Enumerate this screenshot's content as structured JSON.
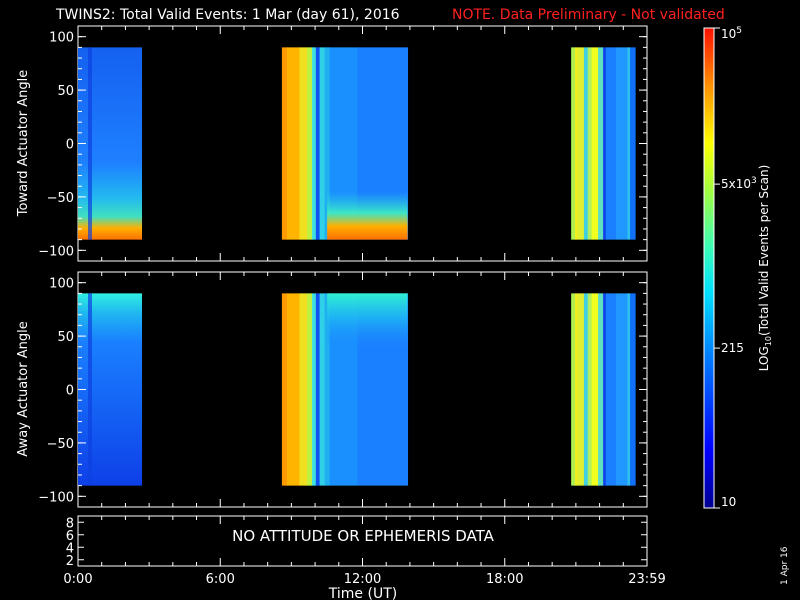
{
  "header": {
    "title": "TWINS2: Total Valid Events:  1 Mar (day  61), 2016",
    "note": "NOTE. Data Preliminary - Not validated"
  },
  "footer": {
    "date_stamp": "1 Apr 16"
  },
  "chart_data": [
    {
      "type": "heatmap",
      "panel": "toward",
      "ylabel": "Toward Actuator Angle",
      "ylim": [
        -110,
        110
      ],
      "yticks": [
        100,
        50,
        0,
        -50,
        -100
      ],
      "xlim_hours": [
        0,
        24
      ],
      "data_angle_range": [
        -90,
        90
      ],
      "segments": [
        {
          "start_hr": 0.0,
          "end_hr": 2.7,
          "base": "blue",
          "edge": "orange-bottom"
        },
        {
          "start_hr": 8.6,
          "end_hr": 13.9,
          "base": "orange-to-blue",
          "edge": "orange-bottom"
        },
        {
          "start_hr": 20.8,
          "end_hr": 23.5,
          "base": "yellow-green-bands",
          "edge": "none"
        }
      ]
    },
    {
      "type": "heatmap",
      "panel": "away",
      "ylabel": "Away Actuator Angle",
      "ylim": [
        -110,
        110
      ],
      "yticks": [
        100,
        50,
        0,
        -50,
        -100
      ],
      "xlim_hours": [
        0,
        24
      ],
      "data_angle_range": [
        -90,
        90
      ],
      "segments": [
        {
          "start_hr": 0.0,
          "end_hr": 2.7,
          "base": "blue",
          "edge": "cyan-top"
        },
        {
          "start_hr": 8.6,
          "end_hr": 13.9,
          "base": "orange-to-blue",
          "edge": "cyan-top"
        },
        {
          "start_hr": 20.8,
          "end_hr": 23.5,
          "base": "yellow-green-bands",
          "edge": "none"
        }
      ]
    },
    {
      "type": "line",
      "panel": "ephemeris",
      "ylim": [
        1,
        9
      ],
      "yticks": [
        "8",
        "6",
        "4",
        "2"
      ],
      "message": "NO ATTITUDE OR EPHEMERIS DATA"
    }
  ],
  "x_axis": {
    "label": "Time (UT)",
    "ticks": [
      {
        "hr": 0,
        "label": "0:00"
      },
      {
        "hr": 6,
        "label": "6:00"
      },
      {
        "hr": 12,
        "label": "12:00"
      },
      {
        "hr": 18,
        "label": "18:00"
      },
      {
        "hr": 24,
        "label": "23:59"
      }
    ]
  },
  "colorbar": {
    "label": "LOG10(Total Valid Events per Scan)",
    "label_main": "LOG",
    "label_sub": "10",
    "label_rest": "(Total Valid Events per Scan)",
    "range": [
      10,
      100000
    ],
    "ticks": [
      {
        "value": 100000,
        "mantissa": "10",
        "exp": "5"
      },
      {
        "value": 5000,
        "mantissa": "5x10",
        "exp": "3"
      },
      {
        "value": 215,
        "mantissa": "215",
        "exp": ""
      },
      {
        "value": 10,
        "mantissa": "10",
        "exp": ""
      }
    ]
  }
}
